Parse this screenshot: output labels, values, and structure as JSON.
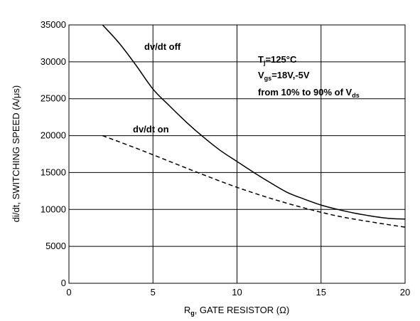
{
  "chart_data": {
    "type": "line",
    "xlabel": {
      "main": "R",
      "sub": "g",
      "rest": ", GATE RESISTOR (Ω)"
    },
    "ylabel": "di/dt, SWITCHING SPEED (A/μs)",
    "xlim": [
      0,
      20
    ],
    "ylim": [
      0,
      35000
    ],
    "x_ticks": [
      0,
      5,
      10,
      15,
      20
    ],
    "y_ticks": [
      0,
      5000,
      10000,
      15000,
      20000,
      25000,
      30000,
      35000
    ],
    "grid": true,
    "series": [
      {
        "name": "dv/dt off",
        "style": "solid",
        "x": [
          2,
          3,
          4,
          5,
          6,
          7,
          8,
          9,
          10,
          11,
          12,
          13,
          14,
          15,
          16,
          17,
          18,
          19,
          20
        ],
        "y": [
          35000,
          32500,
          29500,
          26300,
          24000,
          21800,
          19800,
          18000,
          16500,
          15000,
          13600,
          12300,
          11400,
          10600,
          10000,
          9500,
          9100,
          8800,
          8700
        ]
      },
      {
        "name": "dv/dt on",
        "style": "dashed",
        "x": [
          2,
          4,
          6,
          8,
          10,
          12,
          14,
          16,
          18,
          20
        ],
        "y": [
          20000,
          18300,
          16500,
          14700,
          13000,
          11500,
          10200,
          9100,
          8300,
          7600
        ]
      }
    ],
    "annotations": {
      "tj": {
        "main": "T",
        "sub": "j",
        "rest": "=125°C"
      },
      "vgs": {
        "main": "V",
        "sub": "gs",
        "rest": "=18V,-5V"
      },
      "range": {
        "main": "from 10% to 90% of V",
        "sub": "ds"
      }
    },
    "colors": {
      "line": "#000000",
      "grid": "#000000"
    }
  }
}
